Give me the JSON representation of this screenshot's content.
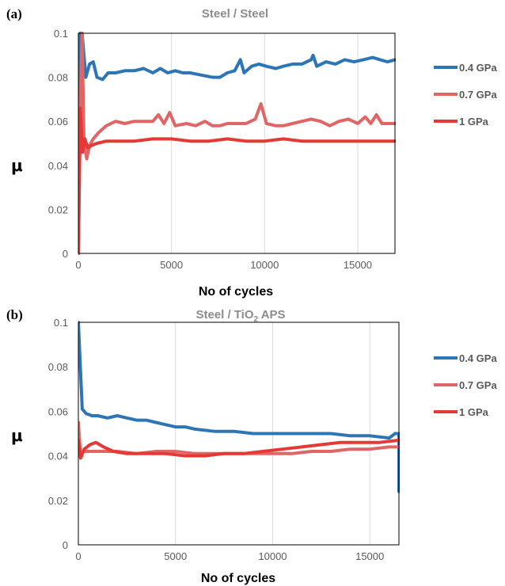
{
  "chart_data": [
    {
      "type": "line",
      "panel": "(a)",
      "title": "Steel / Steel",
      "title_sub": "",
      "title_rest": "",
      "xlabel": "No of cycles",
      "ylabel": "μ",
      "xlim": [
        0,
        17000
      ],
      "ylim": [
        0,
        0.1
      ],
      "xticks": [
        0,
        5000,
        10000,
        15000
      ],
      "yticks": [
        0,
        0.02,
        0.04,
        0.06,
        0.08,
        0.1
      ],
      "ytick_labels": [
        "0",
        "0.02",
        "0.04",
        "0.06",
        "0.08",
        "0.1"
      ],
      "grid": true,
      "legend_position": "right",
      "series": [
        {
          "name": "0.4 GPa",
          "color": "#2e75b6",
          "points": [
            [
              0,
              0
            ],
            [
              100,
              0.1
            ],
            [
              200,
              0.1
            ],
            [
              400,
              0.08
            ],
            [
              600,
              0.086
            ],
            [
              800,
              0.087
            ],
            [
              1000,
              0.08
            ],
            [
              1300,
              0.079
            ],
            [
              1600,
              0.082
            ],
            [
              2000,
              0.082
            ],
            [
              2500,
              0.083
            ],
            [
              3000,
              0.083
            ],
            [
              3500,
              0.084
            ],
            [
              4000,
              0.082
            ],
            [
              4400,
              0.084
            ],
            [
              4800,
              0.082
            ],
            [
              5200,
              0.083
            ],
            [
              5600,
              0.082
            ],
            [
              6000,
              0.082
            ],
            [
              6600,
              0.081
            ],
            [
              7200,
              0.08
            ],
            [
              7600,
              0.08
            ],
            [
              8000,
              0.082
            ],
            [
              8400,
              0.083
            ],
            [
              8700,
              0.088
            ],
            [
              8900,
              0.082
            ],
            [
              9300,
              0.085
            ],
            [
              9700,
              0.086
            ],
            [
              10100,
              0.085
            ],
            [
              10600,
              0.084
            ],
            [
              11000,
              0.085
            ],
            [
              11500,
              0.086
            ],
            [
              12000,
              0.086
            ],
            [
              12500,
              0.088
            ],
            [
              12600,
              0.09
            ],
            [
              12800,
              0.085
            ],
            [
              13300,
              0.087
            ],
            [
              13800,
              0.086
            ],
            [
              14300,
              0.088
            ],
            [
              14800,
              0.087
            ],
            [
              15300,
              0.088
            ],
            [
              15800,
              0.089
            ],
            [
              16200,
              0.088
            ],
            [
              16600,
              0.087
            ],
            [
              17000,
              0.088
            ]
          ]
        },
        {
          "name": "0.7 GPa",
          "color": "#e06666",
          "points": [
            [
              0,
              0
            ],
            [
              100,
              0.065
            ],
            [
              200,
              0.1
            ],
            [
              300,
              0.05
            ],
            [
              450,
              0.043
            ],
            [
              600,
              0.049
            ],
            [
              800,
              0.052
            ],
            [
              1100,
              0.055
            ],
            [
              1500,
              0.058
            ],
            [
              2000,
              0.06
            ],
            [
              2500,
              0.059
            ],
            [
              3000,
              0.06
            ],
            [
              3500,
              0.06
            ],
            [
              4000,
              0.06
            ],
            [
              4300,
              0.063
            ],
            [
              4600,
              0.059
            ],
            [
              4900,
              0.064
            ],
            [
              5200,
              0.058
            ],
            [
              5800,
              0.059
            ],
            [
              6300,
              0.058
            ],
            [
              6800,
              0.06
            ],
            [
              7200,
              0.058
            ],
            [
              7600,
              0.058
            ],
            [
              8000,
              0.059
            ],
            [
              8500,
              0.059
            ],
            [
              9000,
              0.059
            ],
            [
              9500,
              0.061
            ],
            [
              9800,
              0.068
            ],
            [
              10100,
              0.059
            ],
            [
              10600,
              0.058
            ],
            [
              11000,
              0.058
            ],
            [
              11500,
              0.059
            ],
            [
              12000,
              0.06
            ],
            [
              12500,
              0.061
            ],
            [
              13000,
              0.06
            ],
            [
              13500,
              0.058
            ],
            [
              14000,
              0.06
            ],
            [
              14500,
              0.061
            ],
            [
              15000,
              0.059
            ],
            [
              15400,
              0.062
            ],
            [
              15700,
              0.059
            ],
            [
              16000,
              0.063
            ],
            [
              16300,
              0.059
            ],
            [
              16700,
              0.059
            ],
            [
              17000,
              0.059
            ]
          ]
        },
        {
          "name": "1 GPa",
          "color": "#e53935",
          "points": [
            [
              0,
              0
            ],
            [
              100,
              0.066
            ],
            [
              220,
              0.046
            ],
            [
              350,
              0.052
            ],
            [
              500,
              0.048
            ],
            [
              700,
              0.049
            ],
            [
              1000,
              0.05
            ],
            [
              1500,
              0.051
            ],
            [
              2000,
              0.051
            ],
            [
              3000,
              0.051
            ],
            [
              4000,
              0.052
            ],
            [
              5000,
              0.052
            ],
            [
              6000,
              0.051
            ],
            [
              7000,
              0.051
            ],
            [
              8000,
              0.052
            ],
            [
              9000,
              0.051
            ],
            [
              10000,
              0.051
            ],
            [
              11000,
              0.052
            ],
            [
              12000,
              0.051
            ],
            [
              13000,
              0.051
            ],
            [
              14000,
              0.051
            ],
            [
              15000,
              0.051
            ],
            [
              16000,
              0.051
            ],
            [
              17000,
              0.051
            ]
          ]
        }
      ]
    },
    {
      "type": "line",
      "panel": "(b)",
      "title": "Steel / TiO",
      "title_sub": "2",
      "title_rest": " APS",
      "xlabel": "No of cycles",
      "ylabel": "μ",
      "xlim": [
        0,
        16500
      ],
      "ylim": [
        0,
        0.1
      ],
      "xticks": [
        0,
        5000,
        10000,
        15000
      ],
      "yticks": [
        0,
        0.02,
        0.04,
        0.06,
        0.08,
        0.1
      ],
      "ytick_labels": [
        "0",
        "0.02",
        "0.04",
        "0.06",
        "0.08",
        "0.1"
      ],
      "grid": true,
      "legend_position": "right",
      "series": [
        {
          "name": "0.4 GPa",
          "color": "#2e75b6",
          "points": [
            [
              0,
              0.1
            ],
            [
              100,
              0.08
            ],
            [
              200,
              0.061
            ],
            [
              400,
              0.059
            ],
            [
              700,
              0.058
            ],
            [
              1000,
              0.058
            ],
            [
              1500,
              0.057
            ],
            [
              2000,
              0.058
            ],
            [
              2500,
              0.057
            ],
            [
              3000,
              0.056
            ],
            [
              3500,
              0.056
            ],
            [
              4000,
              0.055
            ],
            [
              4500,
              0.054
            ],
            [
              5000,
              0.053
            ],
            [
              5500,
              0.053
            ],
            [
              6000,
              0.052
            ],
            [
              7000,
              0.051
            ],
            [
              8000,
              0.051
            ],
            [
              9000,
              0.05
            ],
            [
              10000,
              0.05
            ],
            [
              11000,
              0.05
            ],
            [
              12000,
              0.05
            ],
            [
              13000,
              0.05
            ],
            [
              14000,
              0.049
            ],
            [
              15000,
              0.049
            ],
            [
              16000,
              0.048
            ],
            [
              16300,
              0.05
            ],
            [
              16500,
              0.05
            ],
            [
              16500,
              0.024
            ]
          ]
        },
        {
          "name": "0.7 GPa",
          "color": "#e06666",
          "points": [
            [
              0,
              0.055
            ],
            [
              120,
              0.039
            ],
            [
              250,
              0.042
            ],
            [
              500,
              0.042
            ],
            [
              1000,
              0.042
            ],
            [
              2000,
              0.042
            ],
            [
              3000,
              0.041
            ],
            [
              4000,
              0.042
            ],
            [
              5000,
              0.042
            ],
            [
              6000,
              0.041
            ],
            [
              7000,
              0.041
            ],
            [
              8000,
              0.041
            ],
            [
              9000,
              0.041
            ],
            [
              10000,
              0.041
            ],
            [
              11000,
              0.041
            ],
            [
              12000,
              0.042
            ],
            [
              13000,
              0.042
            ],
            [
              14000,
              0.043
            ],
            [
              15000,
              0.043
            ],
            [
              16000,
              0.044
            ],
            [
              16500,
              0.044
            ]
          ]
        },
        {
          "name": "1 GPa",
          "color": "#e53935",
          "points": [
            [
              0,
              0.047
            ],
            [
              120,
              0.039
            ],
            [
              300,
              0.043
            ],
            [
              600,
              0.045
            ],
            [
              900,
              0.046
            ],
            [
              1300,
              0.044
            ],
            [
              1800,
              0.042
            ],
            [
              2500,
              0.041
            ],
            [
              3500,
              0.041
            ],
            [
              4500,
              0.041
            ],
            [
              5500,
              0.04
            ],
            [
              6500,
              0.04
            ],
            [
              7500,
              0.041
            ],
            [
              8500,
              0.041
            ],
            [
              9500,
              0.042
            ],
            [
              10500,
              0.043
            ],
            [
              11500,
              0.044
            ],
            [
              12500,
              0.045
            ],
            [
              13500,
              0.046
            ],
            [
              14500,
              0.046
            ],
            [
              15500,
              0.046
            ],
            [
              16500,
              0.047
            ]
          ]
        }
      ]
    }
  ]
}
